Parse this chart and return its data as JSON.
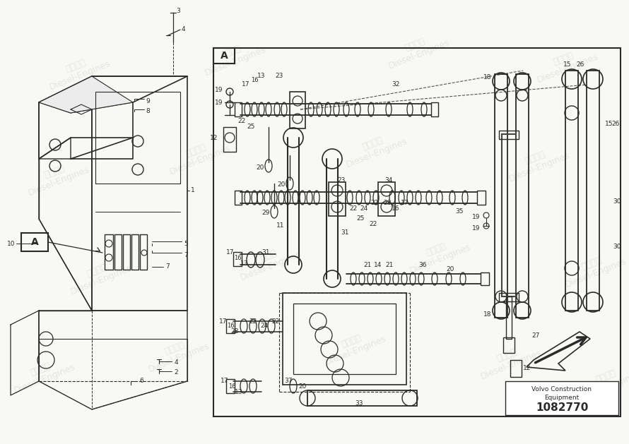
{
  "bg_color": "#f8f8f4",
  "line_color": "#2a2a2a",
  "wm_color": "#d8d8d0",
  "part_number": "1082770",
  "company_line1": "Volvo Construction",
  "company_line2": "Equipment"
}
